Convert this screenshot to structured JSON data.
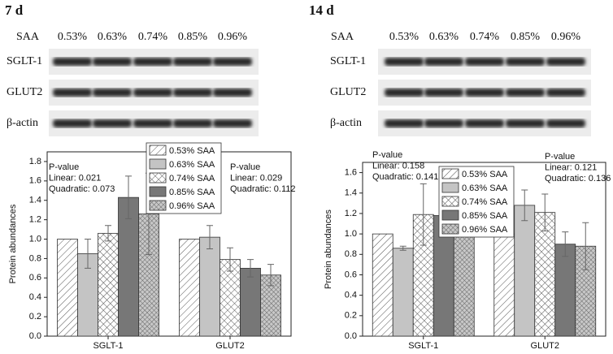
{
  "blots": [
    {
      "title": "7 d",
      "row_label": "SAA",
      "lanes": [
        "0.53%",
        "0.63%",
        "0.74%",
        "0.85%",
        "0.96%"
      ],
      "bands": [
        "SGLT-1",
        "GLUT2",
        "β-actin"
      ]
    },
    {
      "title": "14 d",
      "row_label": "SAA",
      "lanes": [
        "0.53%",
        "0.63%",
        "0.74%",
        "0.85%",
        "0.96%"
      ],
      "bands": [
        "SGLT-1",
        "GLUT2",
        "β-actin"
      ]
    }
  ],
  "chart_data": [
    {
      "type": "bar",
      "y_label": "Protein abundances",
      "categories": [
        "SGLT-1",
        "GLUT2"
      ],
      "ylim": [
        0,
        1.9
      ],
      "yticks": [
        {
          "value": 0,
          "label": "0.0"
        },
        0.2,
        0.4,
        0.6,
        0.8,
        {
          "value": 1,
          "label": "1.0"
        },
        1.2,
        1.4,
        1.6,
        1.8
      ],
      "annotations": [
        [
          "P-value",
          "Linear: 0.021",
          "Quadratic: 0.073"
        ],
        [
          "P-value",
          "Linear: 0.029",
          "Quadratic: 0.112"
        ]
      ],
      "series": [
        {
          "name": "0.53% SAA",
          "pattern": "hatch",
          "color": "#ffffff",
          "values": [
            1.0,
            1.0
          ],
          "errors": [
            null,
            null
          ]
        },
        {
          "name": "0.63% SAA",
          "pattern": "solid",
          "color": "#c4c4c4",
          "values": [
            0.85,
            1.02
          ],
          "errors": [
            0.15,
            0.12
          ]
        },
        {
          "name": "0.74% SAA",
          "pattern": "cross",
          "color": "#ffffff",
          "values": [
            1.06,
            0.79
          ],
          "errors": [
            0.08,
            0.12
          ]
        },
        {
          "name": "0.85% SAA",
          "pattern": "solid",
          "color": "#777777",
          "values": [
            1.43,
            0.7
          ],
          "errors": [
            0.22,
            0.09
          ]
        },
        {
          "name": "0.96% SAA",
          "pattern": "dense",
          "color": "#bdbdbd",
          "values": [
            1.26,
            0.63
          ],
          "errors": [
            0.42,
            0.11
          ]
        }
      ]
    },
    {
      "type": "bar",
      "y_label": "Protein abundances",
      "categories": [
        "SGLT-1",
        "GLUT2"
      ],
      "ylim": [
        0,
        1.7
      ],
      "yticks": [
        {
          "value": 0,
          "label": "0.0"
        },
        0.2,
        0.4,
        0.6,
        0.8,
        {
          "value": 1,
          "label": "1.0"
        },
        1.2,
        1.4,
        1.6
      ],
      "annotations": [
        [
          "P-value",
          "Linear: 0.158",
          "Quadratic: 0.141"
        ],
        [
          "P-value",
          "Linear: 0.121",
          "Quadratic: 0.136"
        ]
      ],
      "series": [
        {
          "name": "0.53% SAA",
          "pattern": "hatch",
          "color": "#ffffff",
          "values": [
            1.0,
            1.0
          ],
          "errors": [
            null,
            null
          ]
        },
        {
          "name": "0.63% SAA",
          "pattern": "solid",
          "color": "#c4c4c4",
          "values": [
            0.86,
            1.28
          ],
          "errors": [
            0.02,
            0.15
          ]
        },
        {
          "name": "0.74% SAA",
          "pattern": "cross",
          "color": "#ffffff",
          "values": [
            1.19,
            1.21
          ],
          "errors": [
            0.3,
            0.18
          ]
        },
        {
          "name": "0.85% SAA",
          "pattern": "solid",
          "color": "#777777",
          "values": [
            1.18,
            0.9
          ],
          "errors": [
            0.16,
            0.12
          ]
        },
        {
          "name": "0.96% SAA",
          "pattern": "dense",
          "color": "#bdbdbd",
          "values": [
            1.1,
            0.88
          ],
          "errors": [
            0.12,
            0.23
          ]
        }
      ]
    }
  ]
}
